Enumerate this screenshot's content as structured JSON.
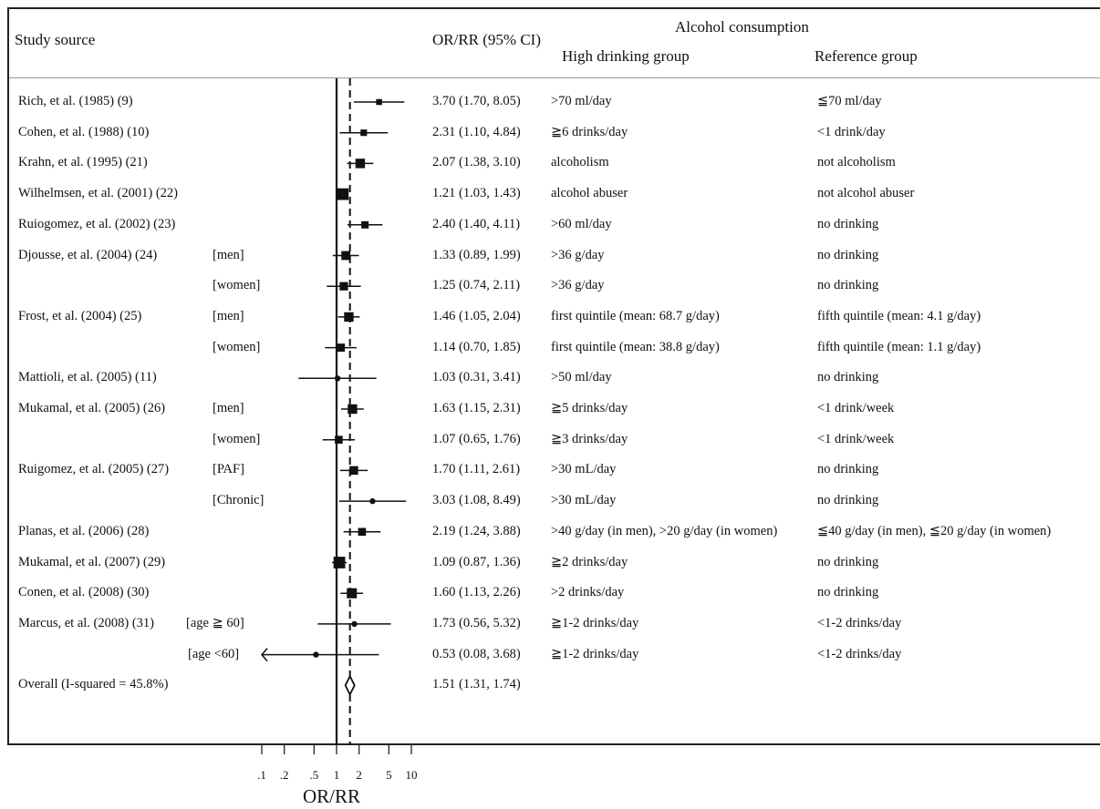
{
  "header": {
    "study": "Study source",
    "estimate": "OR/RR (95% CI)",
    "alcohol": "Alcohol consumption",
    "high": "High drinking group",
    "reference": "Reference group"
  },
  "rows": [
    {
      "study": "Rich, et al. (1985) (9)",
      "subgroup": "",
      "ci_text": "3.70 (1.70, 8.05)",
      "high": ">70 ml/day",
      "ref": "≦70 ml/day"
    },
    {
      "study": "Cohen, et al. (1988) (10)",
      "subgroup": "",
      "ci_text": "2.31 (1.10, 4.84)",
      "high": "≧6 drinks/day",
      "ref": "<1 drink/day"
    },
    {
      "study": "Krahn, et al. (1995) (21)",
      "subgroup": "",
      "ci_text": "2.07 (1.38, 3.10)",
      "high": "alcoholism",
      "ref": "not alcoholism"
    },
    {
      "study": "Wilhelmsen, et al. (2001) (22)",
      "subgroup": "",
      "ci_text": "1.21 (1.03, 1.43)",
      "high": "alcohol abuser",
      "ref": "not alcohol abuser"
    },
    {
      "study": "Ruiogomez, et al. (2002) (23)",
      "subgroup": "",
      "ci_text": "2.40 (1.40, 4.11)",
      "high": ">60 ml/day",
      "ref": "no drinking"
    },
    {
      "study": "Djousse, et al. (2004) (24)",
      "subgroup": "[men]",
      "ci_text": "1.33 (0.89, 1.99)",
      "high": ">36 g/day",
      "ref": "no drinking"
    },
    {
      "study": "",
      "subgroup": "[women]",
      "ci_text": "1.25 (0.74, 2.11)",
      "high": ">36 g/day",
      "ref": "no drinking"
    },
    {
      "study": "Frost, et al. (2004) (25)",
      "subgroup": "[men]",
      "ci_text": "1.46 (1.05, 2.04)",
      "high": "first quintile (mean: 68.7 g/day)",
      "ref": "fifth quintile (mean: 4.1 g/day)"
    },
    {
      "study": "",
      "subgroup": "[women]",
      "ci_text": "1.14 (0.70, 1.85)",
      "high": "first quintile (mean: 38.8 g/day)",
      "ref": "fifth quintile (mean: 1.1 g/day)"
    },
    {
      "study": "Mattioli, et al. (2005) (11)",
      "subgroup": "",
      "ci_text": "1.03 (0.31, 3.41)",
      "high": ">50 ml/day",
      "ref": "no drinking"
    },
    {
      "study": "Mukamal, et al. (2005) (26)",
      "subgroup": "[men]",
      "ci_text": "1.63 (1.15, 2.31)",
      "high": "≧5 drinks/day",
      "ref": "<1 drink/week"
    },
    {
      "study": "",
      "subgroup": "[women]",
      "ci_text": "1.07 (0.65, 1.76)",
      "high": "≧3 drinks/day",
      "ref": "<1 drink/week"
    },
    {
      "study": "Ruigomez, et al. (2005) (27)",
      "subgroup": "[PAF]",
      "ci_text": "1.70 (1.11, 2.61)",
      "high": ">30 mL/day",
      "ref": "no drinking"
    },
    {
      "study": "",
      "subgroup": "[Chronic]",
      "ci_text": "3.03 (1.08, 8.49)",
      "high": ">30 mL/day",
      "ref": "no drinking"
    },
    {
      "study": "Planas, et al. (2006) (28)",
      "subgroup": "",
      "ci_text": "2.19 (1.24, 3.88)",
      "high": ">40 g/day (in men), >20 g/day (in women)",
      "ref": "≦40 g/day (in men), ≦20 g/day (in women)"
    },
    {
      "study": "Mukamal, et al. (2007) (29)",
      "subgroup": "",
      "ci_text": "1.09 (0.87, 1.36)",
      "high": "≧2 drinks/day",
      "ref": "no drinking"
    },
    {
      "study": "Conen, et al. (2008) (30)",
      "subgroup": "",
      "ci_text": "1.60 (1.13, 2.26)",
      "high": ">2 drinks/day",
      "ref": "no drinking"
    },
    {
      "study": "Marcus, et al. (2008) (31)",
      "subgroup": "[age ≧ 60]",
      "ci_text": "1.73 (0.56, 5.32)",
      "high": "≧1-2 drinks/day",
      "ref": "<1-2 drinks/day"
    },
    {
      "study": "",
      "subgroup": "[age <60]",
      "ci_text": "0.53 (0.08, 3.68)",
      "high": "≧1-2 drinks/day",
      "ref": "<1-2 drinks/day"
    },
    {
      "study": "Overall  (I-squared = 45.8%)",
      "subgroup": "",
      "ci_text": "1.51 (1.31, 1.74)",
      "high": "",
      "ref": ""
    }
  ],
  "chart_data": {
    "type": "forest",
    "xlabel": "OR/RR",
    "x_scale": "log",
    "xlim": [
      0.1,
      10
    ],
    "ticks": [
      0.1,
      0.2,
      0.5,
      1,
      2,
      5,
      10
    ],
    "tick_labels": [
      ".1",
      ".2",
      ".5",
      "1",
      "2",
      "5",
      "10"
    ],
    "null_line": 1,
    "pooled_line": 1.51,
    "points": [
      {
        "est": 3.7,
        "lo": 1.7,
        "hi": 8.05,
        "weight": 0.75
      },
      {
        "est": 2.31,
        "lo": 1.1,
        "hi": 4.84,
        "weight": 0.85
      },
      {
        "est": 2.07,
        "lo": 1.38,
        "hi": 3.1,
        "weight": 1.4
      },
      {
        "est": 1.21,
        "lo": 1.03,
        "hi": 1.43,
        "weight": 1.8
      },
      {
        "est": 2.4,
        "lo": 1.4,
        "hi": 4.11,
        "weight": 1.0
      },
      {
        "est": 1.33,
        "lo": 0.89,
        "hi": 1.99,
        "weight": 1.3
      },
      {
        "est": 1.25,
        "lo": 0.74,
        "hi": 2.11,
        "weight": 1.2
      },
      {
        "est": 1.46,
        "lo": 1.05,
        "hi": 2.04,
        "weight": 1.4
      },
      {
        "est": 1.14,
        "lo": 0.7,
        "hi": 1.85,
        "weight": 1.15
      },
      {
        "est": 1.03,
        "lo": 0.31,
        "hi": 3.41,
        "weight": 0.5
      },
      {
        "est": 1.63,
        "lo": 1.15,
        "hi": 2.31,
        "weight": 1.4
      },
      {
        "est": 1.07,
        "lo": 0.65,
        "hi": 1.76,
        "weight": 1.1
      },
      {
        "est": 1.7,
        "lo": 1.11,
        "hi": 2.61,
        "weight": 1.25
      },
      {
        "est": 3.03,
        "lo": 1.08,
        "hi": 8.49,
        "weight": 0.55
      },
      {
        "est": 2.19,
        "lo": 1.24,
        "hi": 3.88,
        "weight": 1.1
      },
      {
        "est": 1.09,
        "lo": 0.87,
        "hi": 1.36,
        "weight": 1.8
      },
      {
        "est": 1.6,
        "lo": 1.13,
        "hi": 2.26,
        "weight": 1.5
      },
      {
        "est": 1.73,
        "lo": 0.56,
        "hi": 5.32,
        "weight": 0.55
      },
      {
        "est": 0.53,
        "lo": 0.08,
        "hi": 3.68,
        "weight": 0.45
      },
      {
        "est": 1.51,
        "lo": 1.31,
        "hi": 1.74,
        "overall": true
      }
    ]
  }
}
